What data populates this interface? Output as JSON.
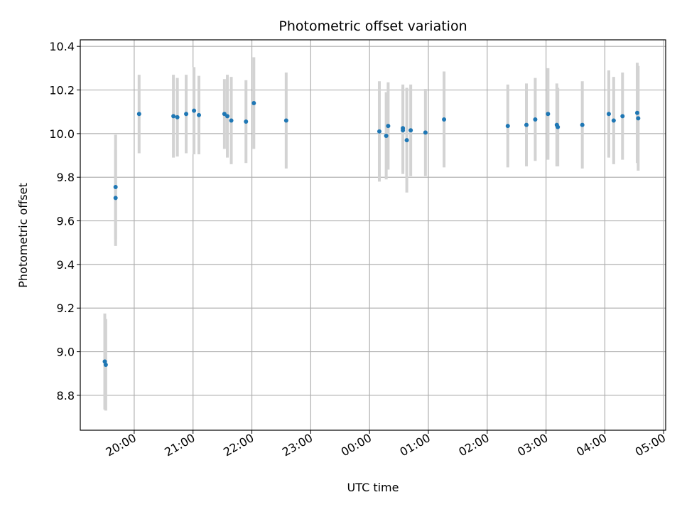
{
  "chart_data": {
    "type": "scatter",
    "title": "Photometric offset variation",
    "xlabel": "UTC time",
    "ylabel": "Photometric offset",
    "x_ticks": [
      "20:00",
      "21:00",
      "22:00",
      "23:00",
      "00:00",
      "01:00",
      "02:00",
      "03:00",
      "04:00",
      "05:00"
    ],
    "y_ticks": [
      "8.8",
      "9.0",
      "9.2",
      "9.4",
      "9.6",
      "9.8",
      "10.0",
      "10.2",
      "10.4"
    ],
    "xlim": [
      "19:05",
      "05:02"
    ],
    "ylim": [
      8.64,
      10.43
    ],
    "grid": true,
    "colors": {
      "point": "#1f77b4",
      "errorbar": "#d3d3d3",
      "grid": "#b0b0b0"
    },
    "series": [
      {
        "points": [
          {
            "x": "19:30",
            "y": 8.955,
            "err": 0.22
          },
          {
            "x": "19:31",
            "y": 8.94,
            "err": 0.21
          },
          {
            "x": "19:41",
            "y": 9.755,
            "err": 0.24
          },
          {
            "x": "19:41",
            "y": 9.705,
            "err": 0.22
          },
          {
            "x": "20:05",
            "y": 10.09,
            "err": 0.18
          },
          {
            "x": "20:40",
            "y": 10.08,
            "err": 0.19
          },
          {
            "x": "20:44",
            "y": 10.075,
            "err": 0.18
          },
          {
            "x": "20:53",
            "y": 10.09,
            "err": 0.18
          },
          {
            "x": "21:01",
            "y": 10.105,
            "err": 0.2
          },
          {
            "x": "21:06",
            "y": 10.085,
            "err": 0.18
          },
          {
            "x": "21:32",
            "y": 10.09,
            "err": 0.16
          },
          {
            "x": "21:35",
            "y": 10.08,
            "err": 0.19
          },
          {
            "x": "21:39",
            "y": 10.06,
            "err": 0.2
          },
          {
            "x": "21:54",
            "y": 10.055,
            "err": 0.19
          },
          {
            "x": "22:02",
            "y": 10.14,
            "err": 0.21
          },
          {
            "x": "22:35",
            "y": 10.06,
            "err": 0.22
          },
          {
            "x": "00:10",
            "y": 10.01,
            "err": 0.23
          },
          {
            "x": "00:17",
            "y": 9.99,
            "err": 0.2
          },
          {
            "x": "00:19",
            "y": 10.035,
            "err": 0.2
          },
          {
            "x": "00:34",
            "y": 10.025,
            "err": 0.2
          },
          {
            "x": "00:34",
            "y": 10.015,
            "err": 0.2
          },
          {
            "x": "00:38",
            "y": 9.97,
            "err": 0.24
          },
          {
            "x": "00:42",
            "y": 10.015,
            "err": 0.21
          },
          {
            "x": "00:57",
            "y": 10.005,
            "err": 0.2
          },
          {
            "x": "01:16",
            "y": 10.065,
            "err": 0.22
          },
          {
            "x": "02:21",
            "y": 10.035,
            "err": 0.19
          },
          {
            "x": "02:40",
            "y": 10.04,
            "err": 0.19
          },
          {
            "x": "02:49",
            "y": 10.065,
            "err": 0.19
          },
          {
            "x": "03:02",
            "y": 10.09,
            "err": 0.21
          },
          {
            "x": "03:11",
            "y": 10.04,
            "err": 0.19
          },
          {
            "x": "03:12",
            "y": 10.03,
            "err": 0.18
          },
          {
            "x": "03:37",
            "y": 10.04,
            "err": 0.2
          },
          {
            "x": "04:04",
            "y": 10.09,
            "err": 0.2
          },
          {
            "x": "04:09",
            "y": 10.06,
            "err": 0.2
          },
          {
            "x": "04:18",
            "y": 10.08,
            "err": 0.2
          },
          {
            "x": "04:33",
            "y": 10.095,
            "err": 0.23
          },
          {
            "x": "04:34",
            "y": 10.07,
            "err": 0.24
          }
        ]
      }
    ]
  }
}
